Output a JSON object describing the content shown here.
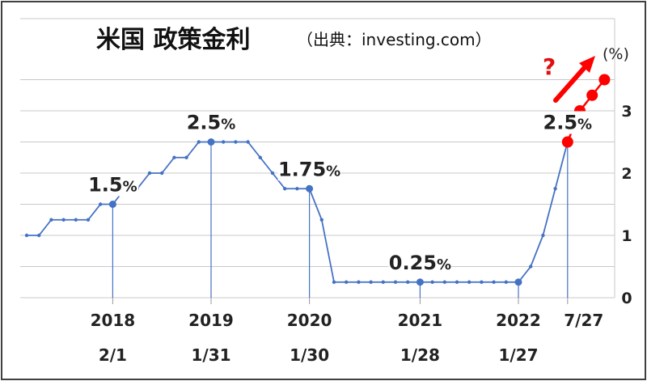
{
  "chart_data": {
    "type": "line",
    "title": "米国 政策金利",
    "source": "（出典：investing.com）",
    "unit": "(%)",
    "y_ticks": [
      "0",
      "1",
      "2",
      "3"
    ],
    "ylim": [
      0,
      3.8
    ],
    "x_labels": [
      {
        "year": "2018",
        "date": "2/1",
        "index": 7
      },
      {
        "year": "2019",
        "date": "1/31",
        "index": 15
      },
      {
        "year": "2020",
        "date": "1/30",
        "index": 23
      },
      {
        "year": "2021",
        "date": "1/28",
        "index": 32
      },
      {
        "year": "2022",
        "date": "1/27",
        "index": 40
      },
      {
        "year": "",
        "date": "7/27",
        "index": 44
      }
    ],
    "grid": true,
    "series": [
      {
        "color": "#4472c4",
        "values": [
          1.0,
          1.0,
          1.25,
          1.25,
          1.25,
          1.25,
          1.5,
          1.5,
          1.75,
          1.75,
          2.0,
          2.0,
          2.25,
          2.25,
          2.5,
          2.5,
          2.5,
          2.5,
          2.5,
          2.25,
          2.0,
          1.75,
          1.75,
          1.75,
          1.25,
          0.25,
          0.25,
          0.25,
          0.25,
          0.25,
          0.25,
          0.25,
          0.25,
          0.25,
          0.25,
          0.25,
          0.25,
          0.25,
          0.25,
          0.25,
          0.25,
          0.5,
          1.0,
          1.75,
          2.5
        ],
        "highlights": [
          7,
          15,
          23,
          32,
          40
        ]
      },
      {
        "color": "#ff0000",
        "x_start": 44,
        "values": [
          2.5,
          3.0,
          3.25,
          3.5
        ]
      }
    ],
    "annotations": [
      {
        "value": "1.5",
        "suffix": "%",
        "index": 7
      },
      {
        "value": "2.5",
        "suffix": "%",
        "index": 15
      },
      {
        "value": "1.75",
        "suffix": "%",
        "index": 23
      },
      {
        "value": "0.25",
        "suffix": "%",
        "index": 32
      },
      {
        "value": "2.5",
        "suffix": "%",
        "index": 44
      }
    ],
    "trend_note": "?"
  }
}
